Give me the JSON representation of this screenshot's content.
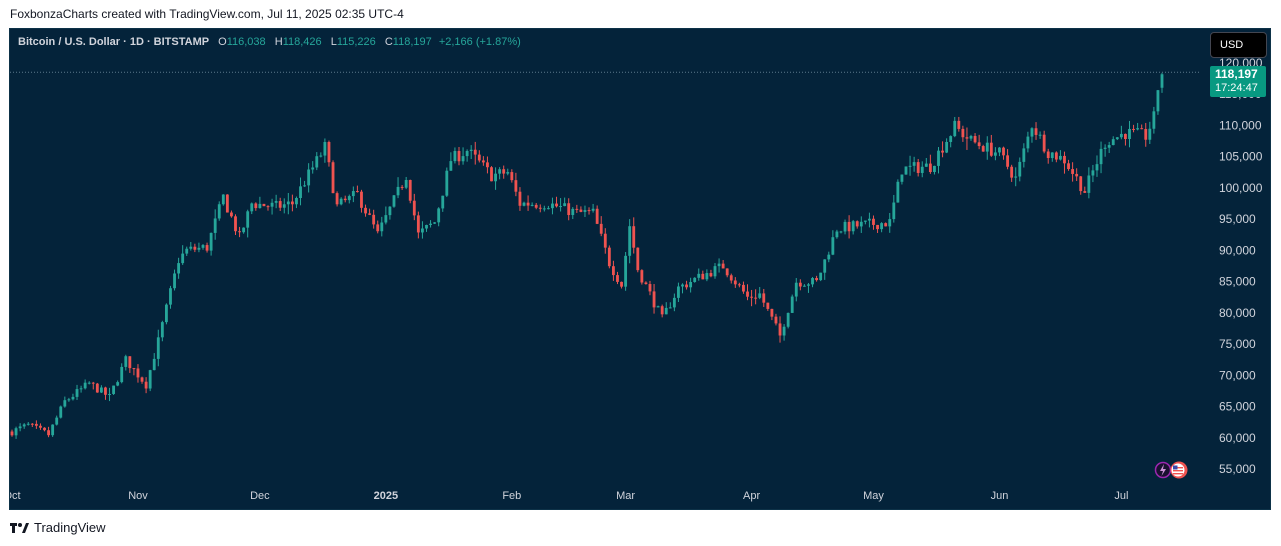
{
  "caption": "FoxbonzaCharts created with TradingView.com, Jul 11, 2025 02:35 UTC-4",
  "legend": {
    "symbol": "Bitcoin / U.S. Dollar · 1D · BITSTAMP",
    "o_label": "O",
    "o_value": "116,038",
    "h_label": "H",
    "h_value": "118,426",
    "l_label": "L",
    "l_value": "115,226",
    "c_label": "C",
    "c_value": "118,197",
    "change": "+2,166 (+1.87%)"
  },
  "currency": "USD",
  "last_price": {
    "price": "118,197",
    "countdown": "17:24:47"
  },
  "footer": {
    "brand": "TradingView"
  },
  "colors": {
    "up": "#26a69a",
    "down": "#ef5350",
    "background": "#04233a",
    "axis_text": "#d1d4dc",
    "price_tag": "#089981"
  },
  "chart_data": {
    "type": "candlestick",
    "title": "Bitcoin / U.S. Dollar · 1D · BITSTAMP",
    "ylim": [
      50000,
      121000
    ],
    "y_ticks": [
      120000,
      115000,
      110000,
      105000,
      100000,
      95000,
      90000,
      85000,
      80000,
      75000,
      70000,
      65000,
      60000,
      55000
    ],
    "y_tick_labels": [
      "120,000",
      "115,000",
      "110,000",
      "105,000",
      "100,000",
      "95,000",
      "90,000",
      "85,000",
      "80,000",
      "75,000",
      "70,000",
      "65,000",
      "60,000",
      "55,000"
    ],
    "x_ticks": [
      {
        "label": "Oct",
        "date": "2024-10-01"
      },
      {
        "label": "Nov",
        "date": "2024-11-01"
      },
      {
        "label": "Dec",
        "date": "2024-12-01"
      },
      {
        "label": "2025",
        "date": "2025-01-01"
      },
      {
        "label": "Feb",
        "date": "2025-02-01"
      },
      {
        "label": "Mar",
        "date": "2025-03-01"
      },
      {
        "label": "Apr",
        "date": "2025-04-01"
      },
      {
        "label": "May",
        "date": "2025-05-01"
      },
      {
        "label": "Jun",
        "date": "2025-06-01"
      },
      {
        "label": "Jul",
        "date": "2025-07-01"
      }
    ],
    "last_close": 118197,
    "close_anchors": [
      [
        "2024-10-01",
        61000
      ],
      [
        "2024-10-05",
        62000
      ],
      [
        "2024-10-10",
        60500
      ],
      [
        "2024-10-14",
        65800
      ],
      [
        "2024-10-20",
        68700
      ],
      [
        "2024-10-25",
        66500
      ],
      [
        "2024-10-29",
        72500
      ],
      [
        "2024-11-03",
        68500
      ],
      [
        "2024-11-06",
        75500
      ],
      [
        "2024-11-11",
        88500
      ],
      [
        "2024-11-13",
        90000
      ],
      [
        "2024-11-18",
        90500
      ],
      [
        "2024-11-22",
        98500
      ],
      [
        "2024-11-26",
        92000
      ],
      [
        "2024-11-29",
        97500
      ],
      [
        "2024-12-05",
        97000
      ],
      [
        "2024-12-09",
        97500
      ],
      [
        "2024-12-12",
        101000
      ],
      [
        "2024-12-17",
        106500
      ],
      [
        "2024-12-20",
        97000
      ],
      [
        "2024-12-25",
        99000
      ],
      [
        "2024-12-30",
        92500
      ],
      [
        "2025-01-06",
        102000
      ],
      [
        "2025-01-09",
        92500
      ],
      [
        "2025-01-13",
        94500
      ],
      [
        "2025-01-17",
        104500
      ],
      [
        "2025-01-21",
        106000
      ],
      [
        "2025-01-27",
        102000
      ],
      [
        "2025-01-31",
        102500
      ],
      [
        "2025-02-03",
        97500
      ],
      [
        "2025-02-10",
        97500
      ],
      [
        "2025-02-17",
        96000
      ],
      [
        "2025-02-21",
        96000
      ],
      [
        "2025-02-25",
        88000
      ],
      [
        "2025-02-28",
        84500
      ],
      [
        "2025-03-02",
        94000
      ],
      [
        "2025-03-04",
        87000
      ],
      [
        "2025-03-10",
        79000
      ],
      [
        "2025-03-14",
        84000
      ],
      [
        "2025-03-20",
        86000
      ],
      [
        "2025-03-25",
        87500
      ],
      [
        "2025-03-31",
        82500
      ],
      [
        "2025-04-03",
        83000
      ],
      [
        "2025-04-08",
        76300
      ],
      [
        "2025-04-12",
        85000
      ],
      [
        "2025-04-17",
        84900
      ],
      [
        "2025-04-22",
        93500
      ],
      [
        "2025-04-30",
        94200
      ],
      [
        "2025-05-05",
        94500
      ],
      [
        "2025-05-08",
        103000
      ],
      [
        "2025-05-15",
        103500
      ],
      [
        "2025-05-21",
        109800
      ],
      [
        "2025-05-25",
        107500
      ],
      [
        "2025-06-01",
        105500
      ],
      [
        "2025-06-05",
        101500
      ],
      [
        "2025-06-09",
        110200
      ],
      [
        "2025-06-13",
        105800
      ],
      [
        "2025-06-17",
        104500
      ],
      [
        "2025-06-22",
        99500
      ],
      [
        "2025-06-27",
        107300
      ],
      [
        "2025-07-02",
        108800
      ],
      [
        "2025-07-07",
        108300
      ],
      [
        "2025-07-09",
        111200
      ],
      [
        "2025-07-10",
        116000
      ],
      [
        "2025-07-11",
        118197
      ]
    ]
  }
}
